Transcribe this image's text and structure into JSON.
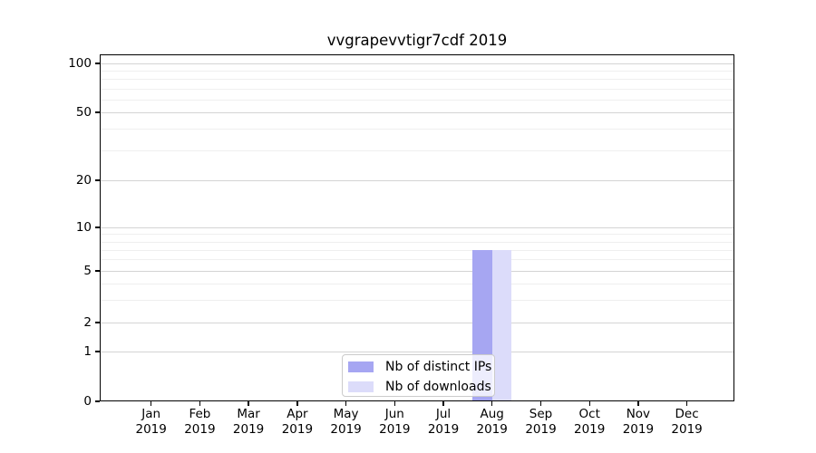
{
  "title": "vvgrapevvtigr7cdf 2019",
  "chart_data": {
    "type": "bar",
    "title": "vvgrapevvtigr7cdf 2019",
    "x_axis": {
      "categories": [
        "Jan",
        "Feb",
        "Mar",
        "Apr",
        "May",
        "Jun",
        "Jul",
        "Aug",
        "Sep",
        "Oct",
        "Nov",
        "Dec"
      ],
      "year_label": "2019"
    },
    "y_axis": {
      "scale": "symlog-like",
      "ticks": [
        0,
        1,
        2,
        5,
        10,
        20,
        50,
        100
      ],
      "minor_ticks": [
        3,
        4,
        6,
        7,
        8,
        9,
        30,
        40,
        60,
        70,
        80,
        90
      ],
      "range": [
        0,
        110
      ],
      "grid": true
    },
    "series": [
      {
        "name": "Nb of distinct IPs",
        "color": "#a6a6f2",
        "values": [
          0,
          0,
          0,
          0,
          0,
          0,
          0,
          7,
          0,
          0,
          0,
          0
        ]
      },
      {
        "name": "Nb of downloads",
        "color": "#dcdcfa",
        "values": [
          0,
          0,
          0,
          0,
          0,
          0,
          0,
          7,
          0,
          0,
          0,
          0
        ]
      }
    ],
    "legend_position": "lower center"
  },
  "colors": {
    "background": "#ffffff",
    "major_grid": "#d4d4d4",
    "minor_grid": "#efefef",
    "axis": "#000000"
  }
}
